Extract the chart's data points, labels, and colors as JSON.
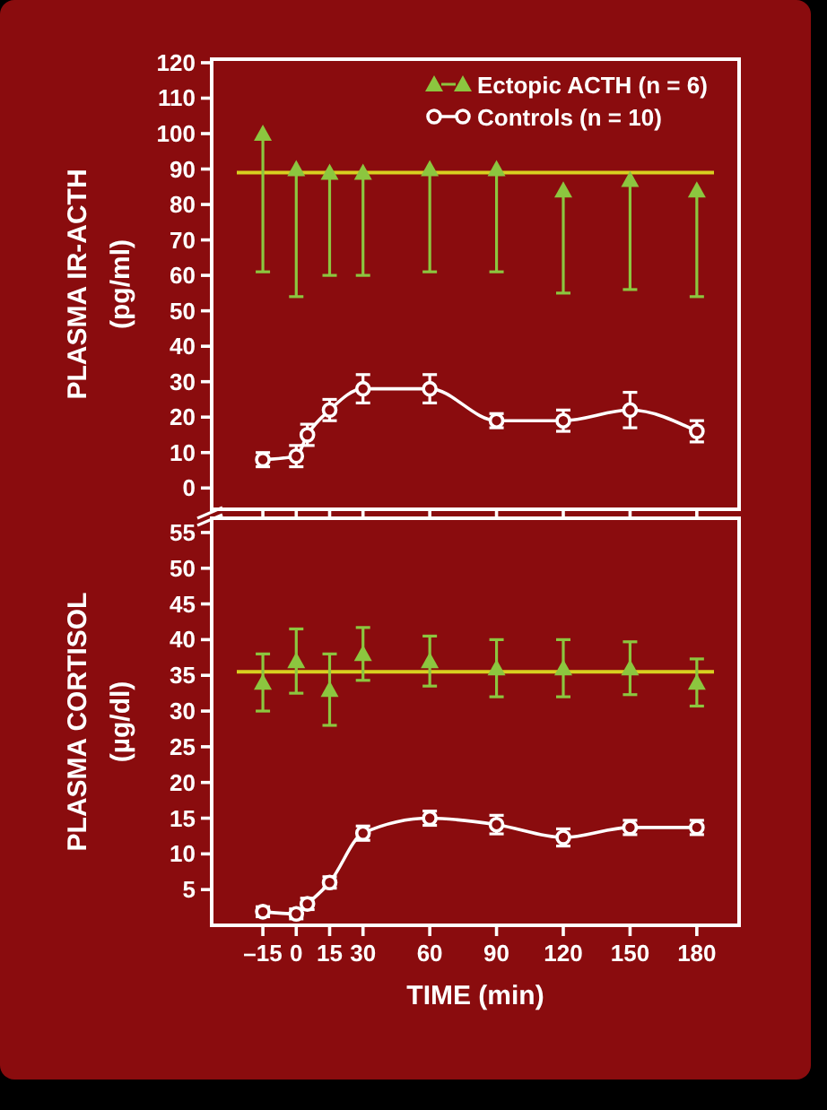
{
  "chart_data": [
    {
      "type": "line",
      "ylabel": "PLASMA IR-ACTH\n(pg/ml)",
      "xlim": [
        -38,
        199
      ],
      "xticks": [
        -15,
        0,
        15,
        30,
        60,
        90,
        120,
        150,
        180
      ],
      "ylim": [
        -6,
        121
      ],
      "yticks": [
        0,
        10,
        20,
        30,
        40,
        50,
        60,
        70,
        80,
        90,
        100,
        110,
        120
      ],
      "tick_labels": "y",
      "legend": "top right",
      "series": [
        {
          "name": "Ectopic ACTH (n = 6)",
          "type": "scatter",
          "marker": "triangle",
          "color": "#8cc63f",
          "x": [
            -15,
            0,
            15,
            30,
            60,
            90,
            120,
            150,
            180
          ],
          "values": [
            100,
            90,
            89,
            89,
            90,
            90,
            84,
            87,
            84
          ],
          "errors": [
            [
              61,
              100
            ],
            [
              54,
              90
            ],
            [
              60,
              89
            ],
            [
              60,
              89
            ],
            [
              61,
              90
            ],
            [
              61,
              90
            ],
            [
              55,
              84
            ],
            [
              56,
              87
            ],
            [
              54,
              84
            ]
          ]
        },
        {
          "name": "Controls (n = 10)",
          "type": "line",
          "marker": "circle",
          "color": "#ffffff",
          "x": [
            -15,
            0,
            5,
            15,
            30,
            60,
            90,
            120,
            150,
            180
          ],
          "values": [
            8,
            9,
            15,
            22,
            28,
            28,
            19,
            19,
            22,
            16
          ],
          "errors": [
            2,
            3,
            3,
            3,
            4,
            4,
            2,
            3,
            5,
            3
          ]
        }
      ],
      "ref_lines": [
        {
          "axis": "y",
          "value": 89,
          "color": "#d8d020"
        }
      ]
    },
    {
      "type": "line",
      "ylabel": "PLASMA CORTISOL\n(µg/dl)",
      "xlabel": "TIME (min)",
      "xlim": [
        -38,
        199
      ],
      "xticks": [
        {
          "value": -15,
          "label": "–15"
        },
        0,
        15,
        30,
        60,
        90,
        120,
        150,
        180
      ],
      "ylim": [
        0,
        57
      ],
      "yticks": [
        5,
        10,
        15,
        20,
        25,
        30,
        35,
        40,
        45,
        50,
        55
      ],
      "series": [
        {
          "type": "scatter",
          "marker": "triangle",
          "color": "#8cc63f",
          "x": [
            -15,
            0,
            15,
            30,
            60,
            90,
            120,
            150,
            180
          ],
          "values": [
            34,
            37,
            33,
            38,
            37,
            36,
            36,
            36,
            34
          ],
          "errors": [
            4,
            4.5,
            5,
            3.7,
            3.5,
            4,
            4,
            3.7,
            3.3
          ]
        },
        {
          "type": "line",
          "marker": "circle",
          "color": "#ffffff",
          "x": [
            -15,
            0,
            5,
            15,
            30,
            60,
            90,
            120,
            150,
            180
          ],
          "values": [
            1.9,
            1.6,
            3,
            6,
            12.9,
            15,
            14.1,
            12.3,
            13.7,
            13.7
          ],
          "errors": [
            0.7,
            0.7,
            0.8,
            0.8,
            1,
            1,
            1.3,
            1.2,
            1,
            1
          ]
        }
      ],
      "ref_lines": [
        {
          "axis": "y",
          "value": 35.5,
          "color": "#d8d020"
        }
      ]
    }
  ]
}
